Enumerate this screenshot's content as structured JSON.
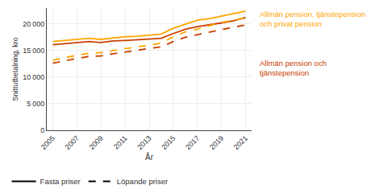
{
  "chart_data": {
    "type": "line",
    "x": [
      2005,
      2006,
      2007,
      2008,
      2009,
      2010,
      2011,
      2012,
      2013,
      2014,
      2015,
      2016,
      2017,
      2018,
      2019,
      2020,
      2021
    ],
    "series": [
      {
        "color": "#FFA500",
        "line_style": "solid",
        "values": [
          16700,
          16900,
          17200,
          17300,
          17100,
          17400,
          17600,
          17700,
          17900,
          18100,
          19200,
          20000,
          20700,
          21000,
          21500,
          21900,
          22400
        ]
      },
      {
        "color": "#C94000",
        "line_style": "solid",
        "values": [
          16100,
          16300,
          16600,
          16700,
          16500,
          16800,
          16900,
          17000,
          17100,
          17300,
          18200,
          19000,
          19500,
          19800,
          20200,
          20600,
          21200
        ]
      },
      {
        "color": "#FFA500",
        "line_style": "dashed",
        "values": [
          13200,
          13700,
          14100,
          14500,
          14600,
          15000,
          15400,
          15700,
          16000,
          16400,
          17600,
          18500,
          19000,
          19700,
          20300,
          20700,
          21200
        ]
      },
      {
        "color": "#C94000",
        "line_style": "dashed",
        "values": [
          12600,
          13100,
          13500,
          13900,
          14000,
          14400,
          14700,
          15000,
          15300,
          15700,
          16700,
          17500,
          18000,
          18500,
          19000,
          19400,
          19800
        ]
      }
    ],
    "xlabel": "År",
    "ylabel": "Snittutbetalning, kro",
    "xlim": [
      2004.5,
      2021.5
    ],
    "xticks": [
      2005,
      2007,
      2009,
      2011,
      2013,
      2015,
      2017,
      2019,
      2021
    ],
    "ylim": [
      0,
      23000
    ],
    "yticks": [
      0,
      {
        "value": 5000,
        "label": "5 000"
      },
      {
        "value": 10000,
        "label": "10 000"
      },
      {
        "value": 15000,
        "label": "15 000"
      },
      {
        "value": 20000,
        "label": "20 000"
      }
    ],
    "grid": true,
    "annotations": [
      {
        "text": "Allmän pension, tjänstepension\noch privat pension",
        "color": "#FFA500"
      },
      {
        "text": "Allmän pension och\ntjänstepension",
        "color": "#C94000"
      }
    ],
    "legend": "bottom left",
    "legend_entries": [
      {
        "text": "Fasta priser",
        "line_style": "solid",
        "color": "black"
      },
      {
        "text": "Löpande priser",
        "line_style": "dashed",
        "color": "black"
      }
    ]
  }
}
